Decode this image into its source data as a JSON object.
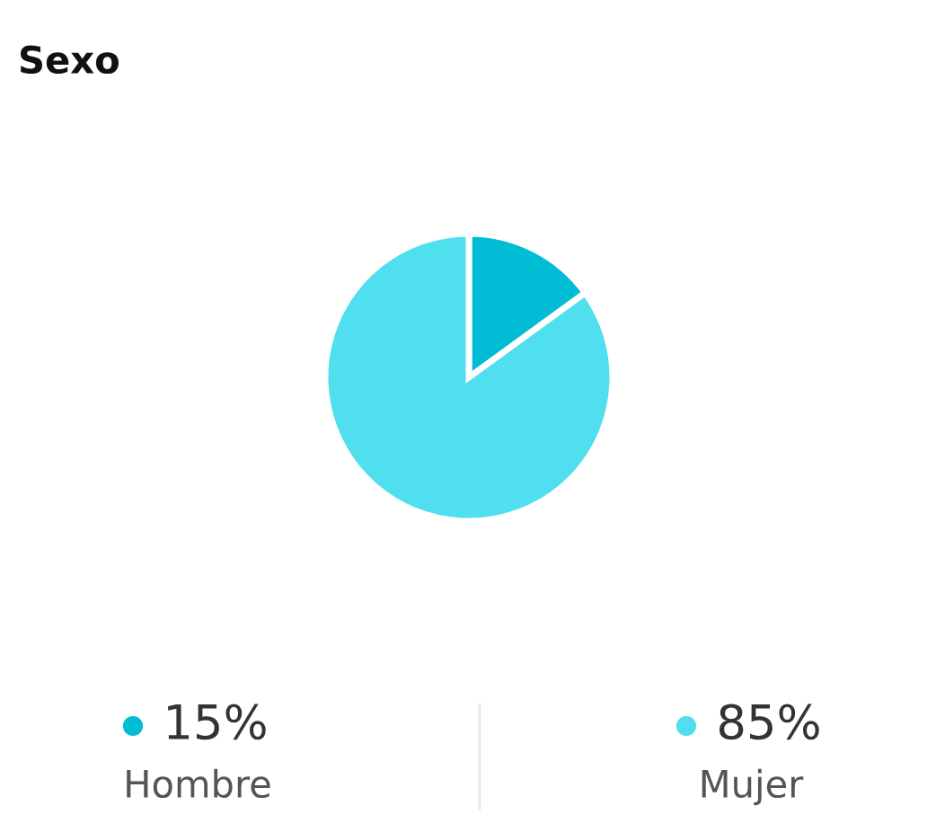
{
  "chart_data": {
    "type": "pie",
    "title": "Sexo",
    "categories": [
      "Hombre",
      "Mujer"
    ],
    "values": [
      15,
      85
    ],
    "colors": [
      "#00bcd4",
      "#4fdfef"
    ],
    "value_labels": [
      "15%",
      "85%"
    ],
    "legend": "bottom"
  }
}
